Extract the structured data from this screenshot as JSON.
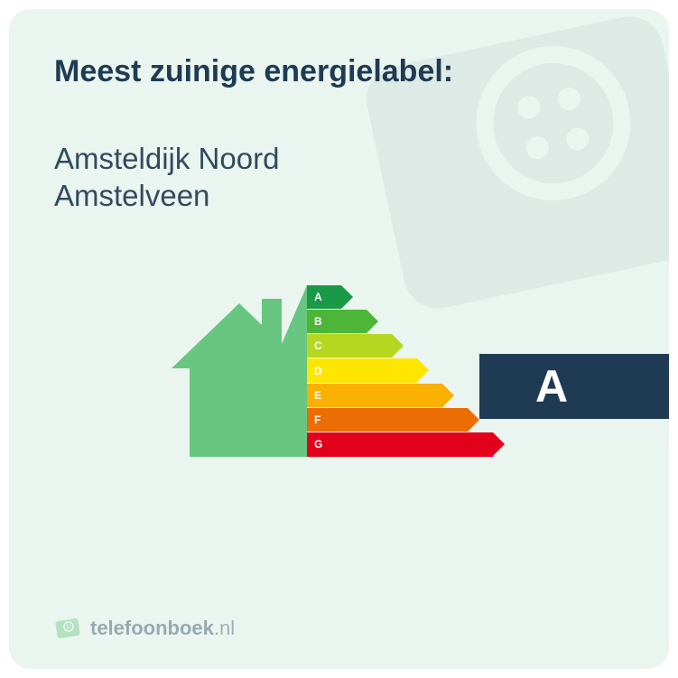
{
  "card": {
    "background_color": "#e9f5ee",
    "border_radius": 24,
    "title": "Meest zuinige energielabel:",
    "title_color": "#1f3b53",
    "title_fontsize": 34,
    "subtitle_line1": "Amsteldijk Noord",
    "subtitle_line2": "Amstelveen",
    "subtitle_color": "#334a5e",
    "subtitle_fontsize": 33
  },
  "energy_chart": {
    "house_color": "#67c67f",
    "bar_height": 26.3,
    "arrow_width": 13,
    "base_bar_width": 38,
    "bar_width_step": 28,
    "label_fontsize": 12,
    "label_color": "#ffffff",
    "bars": [
      {
        "letter": "A",
        "color": "#1a9946"
      },
      {
        "letter": "B",
        "color": "#4db537"
      },
      {
        "letter": "C",
        "color": "#b6d61f"
      },
      {
        "letter": "D",
        "color": "#ffe600"
      },
      {
        "letter": "E",
        "color": "#f9b000"
      },
      {
        "letter": "F",
        "color": "#ed6d05"
      },
      {
        "letter": "G",
        "color": "#e2001a"
      }
    ]
  },
  "selected": {
    "letter": "A",
    "badge_color": "#1f3b53",
    "letter_color": "#ffffff",
    "letter_fontsize": 50
  },
  "footer": {
    "brand_bold": "telefoonboek",
    "brand_suffix": ".nl",
    "logo_fill": "#67c67f",
    "text_color": "#334a5e"
  }
}
